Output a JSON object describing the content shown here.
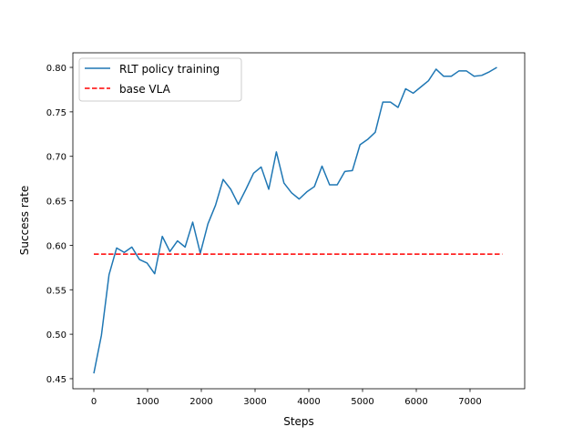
{
  "chart_data": {
    "type": "line",
    "title": "",
    "xlabel": "Steps",
    "ylabel": "Success rate",
    "xlim": [
      -390,
      8017
    ],
    "ylim": [
      0.4387,
      0.8164
    ],
    "xticks": [
      0,
      1000,
      2000,
      3000,
      4000,
      5000,
      6000,
      7000
    ],
    "xtick_labels": [
      "0",
      "1000",
      "2000",
      "3000",
      "4000",
      "5000",
      "6000",
      "7000"
    ],
    "yticks": [
      0.45,
      0.5,
      0.55,
      0.6,
      0.65,
      0.7,
      0.75,
      0.8
    ],
    "ytick_labels": [
      "0.45",
      "0.50",
      "0.55",
      "0.60",
      "0.65",
      "0.70",
      "0.75",
      "0.80"
    ],
    "grid": false,
    "legend_position": "top-left",
    "series": [
      {
        "name": "RLT policy training",
        "color": "#1f77b4",
        "style": "solid",
        "x_start": 0,
        "x_end": 7500,
        "values": [
          0.456,
          0.499,
          0.567,
          0.597,
          0.592,
          0.598,
          0.584,
          0.58,
          0.568,
          0.61,
          0.593,
          0.605,
          0.598,
          0.626,
          0.591,
          0.624,
          0.645,
          0.674,
          0.663,
          0.646,
          0.663,
          0.681,
          0.688,
          0.663,
          0.705,
          0.67,
          0.659,
          0.652,
          0.66,
          0.666,
          0.689,
          0.668,
          0.668,
          0.683,
          0.684,
          0.713,
          0.719,
          0.727,
          0.761,
          0.761,
          0.755,
          0.776,
          0.771,
          0.778,
          0.785,
          0.798,
          0.79,
          0.79,
          0.796,
          0.796,
          0.79,
          0.791,
          0.795,
          0.8
        ]
      },
      {
        "name": "base VLA",
        "color": "#ff0000",
        "style": "dashed",
        "x": [
          0,
          7600
        ],
        "values": [
          0.59,
          0.59
        ]
      }
    ]
  }
}
